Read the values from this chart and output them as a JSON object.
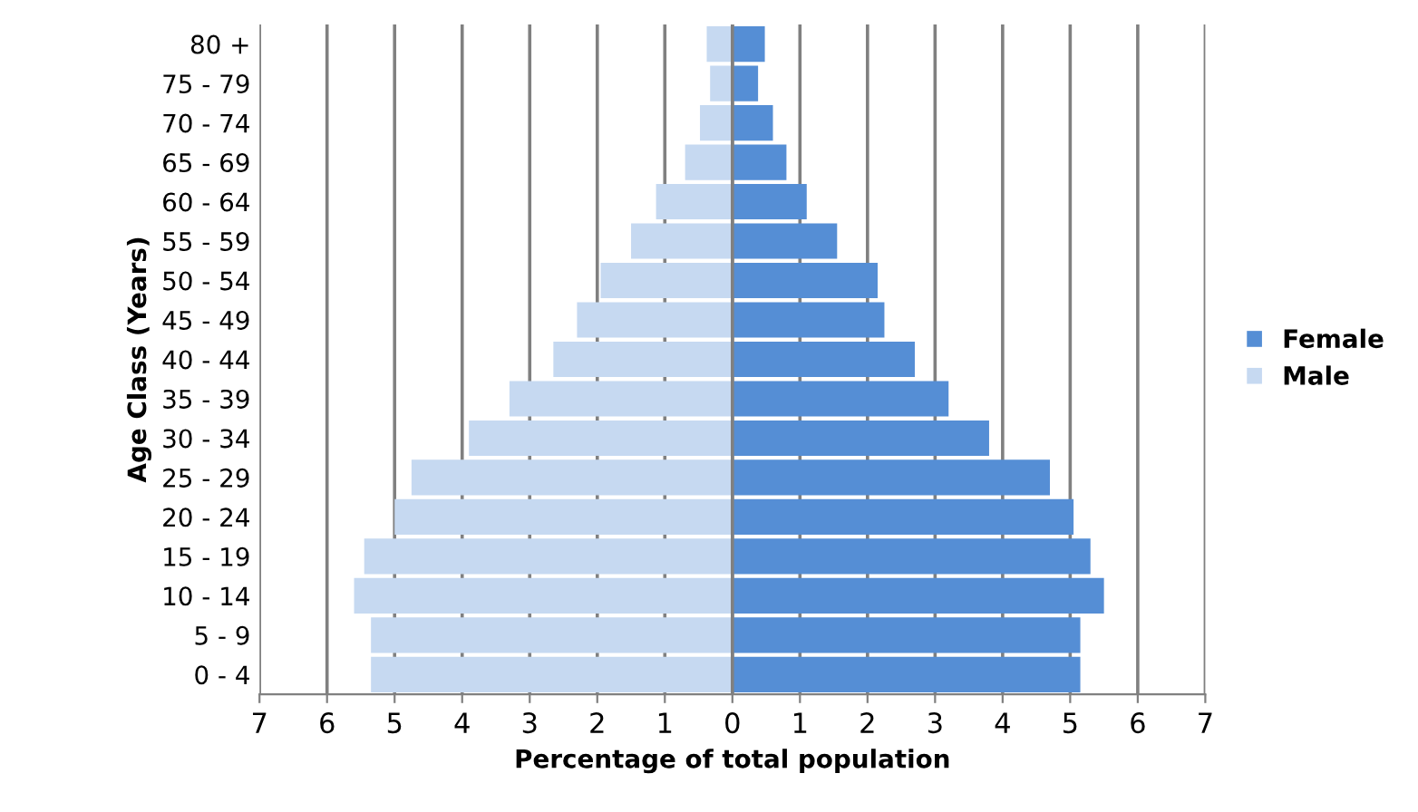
{
  "chart_data": {
    "type": "bar",
    "orientation": "horizontal",
    "xlabel": "Percentage of total population",
    "ylabel": "Age Class (Years)",
    "categories": [
      "80 +",
      "75 - 79",
      "70 - 74",
      "65 - 69",
      "60 - 64",
      "55 - 59",
      "50 - 54",
      "45 - 49",
      "40 - 44",
      "35 - 39",
      "30 - 34",
      "25 - 29",
      "20 - 24",
      "15 - 19",
      "10 - 14",
      "5 - 9",
      "0 - 4"
    ],
    "series": [
      {
        "name": "Female",
        "color": "#558ed5",
        "values": [
          0.48,
          0.38,
          0.6,
          0.8,
          1.1,
          1.55,
          2.15,
          2.25,
          2.7,
          3.2,
          3.8,
          4.7,
          5.05,
          5.3,
          5.5,
          5.15,
          5.15
        ]
      },
      {
        "name": "Male",
        "color": "#c6d9f1",
        "values": [
          -0.38,
          -0.33,
          -0.48,
          -0.7,
          -1.13,
          -1.5,
          -1.95,
          -2.3,
          -2.65,
          -3.3,
          -3.9,
          -4.75,
          -5.0,
          -5.45,
          -5.6,
          -5.35,
          -5.35
        ]
      }
    ],
    "xlim": [
      -7,
      7
    ],
    "xticks": [
      {
        "value": -7,
        "label": "7"
      },
      {
        "value": -6,
        "label": "6"
      },
      {
        "value": -5,
        "label": "5"
      },
      {
        "value": -4,
        "label": "4"
      },
      {
        "value": -3,
        "label": "3"
      },
      {
        "value": -2,
        "label": "2"
      },
      {
        "value": -1,
        "label": "1"
      },
      0,
      1,
      2,
      3,
      4,
      5,
      6,
      7
    ],
    "grid": "x",
    "legend": "right",
    "stacked": true
  }
}
